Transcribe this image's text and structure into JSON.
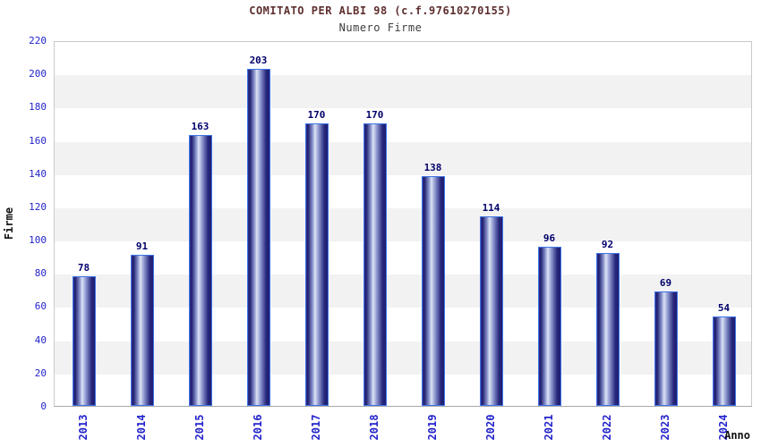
{
  "chart_data": {
    "type": "bar",
    "title": "COMITATO PER ALBI 98 (c.f.97610270155)",
    "subtitle": "Numero Firme",
    "xlabel": "Anno",
    "ylabel": "Firme",
    "categories": [
      "2013",
      "2014",
      "2015",
      "2016",
      "2017",
      "2018",
      "2019",
      "2020",
      "2021",
      "2022",
      "2023",
      "2024"
    ],
    "values": [
      78,
      91,
      163,
      203,
      170,
      170,
      138,
      114,
      96,
      92,
      69,
      54
    ],
    "ylim": [
      0,
      220
    ],
    "ytick_step": 20,
    "grid": "alternating-horizontal-bands",
    "legend": "none",
    "colors": {
      "title": "#5e2f2f",
      "subtitle": "#3d3d3d",
      "tick_labels": "#2323cc",
      "value_labels": "#00006b",
      "band_gray": "#f2f2f2",
      "bar_dark": "#1e1e70",
      "bar_highlight": "#dde3f5",
      "bar_border": "#3f74e6"
    }
  }
}
